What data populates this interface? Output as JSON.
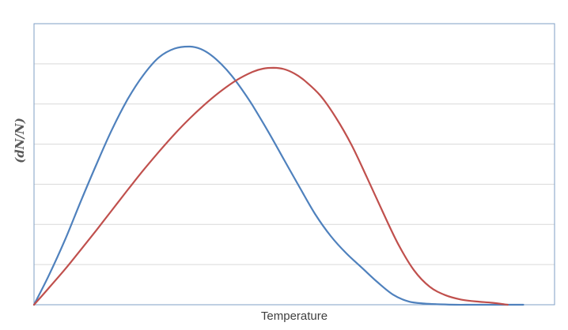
{
  "chart_data": {
    "type": "line",
    "title": "",
    "xlabel": "Temperature",
    "ylabel": "(dN/N)",
    "xlim": [
      0,
      100
    ],
    "ylim": [
      0,
      7
    ],
    "grid": true,
    "legend": "none",
    "axis_color": "#7f9fc6",
    "grid_color": "#d9d9d9",
    "series": [
      {
        "color": "#4f81bd",
        "x": [
          0,
          3,
          6,
          9,
          12,
          15,
          18,
          21,
          24,
          27,
          30,
          32,
          34,
          36,
          38,
          40,
          42,
          45,
          48,
          51,
          54,
          57,
          60,
          63,
          66,
          69,
          72,
          75,
          78,
          81,
          84,
          87,
          90,
          93,
          94
        ],
        "y": [
          0,
          0.77,
          1.63,
          2.58,
          3.5,
          4.37,
          5.12,
          5.72,
          6.16,
          6.38,
          6.43,
          6.37,
          6.22,
          5.99,
          5.7,
          5.35,
          4.96,
          4.31,
          3.62,
          2.93,
          2.26,
          1.71,
          1.28,
          0.92,
          0.56,
          0.25,
          0.08,
          0.03,
          0.01,
          0.0,
          0.0,
          0.0,
          0.0,
          0.0,
          0.0
        ]
      },
      {
        "color": "#c0504d",
        "x": [
          0,
          3,
          6,
          9,
          12,
          15,
          18,
          21,
          24,
          27,
          30,
          33,
          36,
          39,
          42,
          44,
          46,
          48,
          50,
          52,
          55,
          58,
          61,
          64,
          67,
          70,
          73,
          76,
          79,
          82,
          85,
          88,
          91
        ],
        "y": [
          0,
          0.44,
          0.89,
          1.37,
          1.86,
          2.36,
          2.86,
          3.35,
          3.81,
          4.25,
          4.65,
          5.01,
          5.33,
          5.6,
          5.8,
          5.88,
          5.9,
          5.87,
          5.76,
          5.58,
          5.21,
          4.66,
          3.98,
          3.16,
          2.31,
          1.5,
          0.86,
          0.45,
          0.24,
          0.13,
          0.08,
          0.05,
          0.0
        ]
      }
    ]
  }
}
